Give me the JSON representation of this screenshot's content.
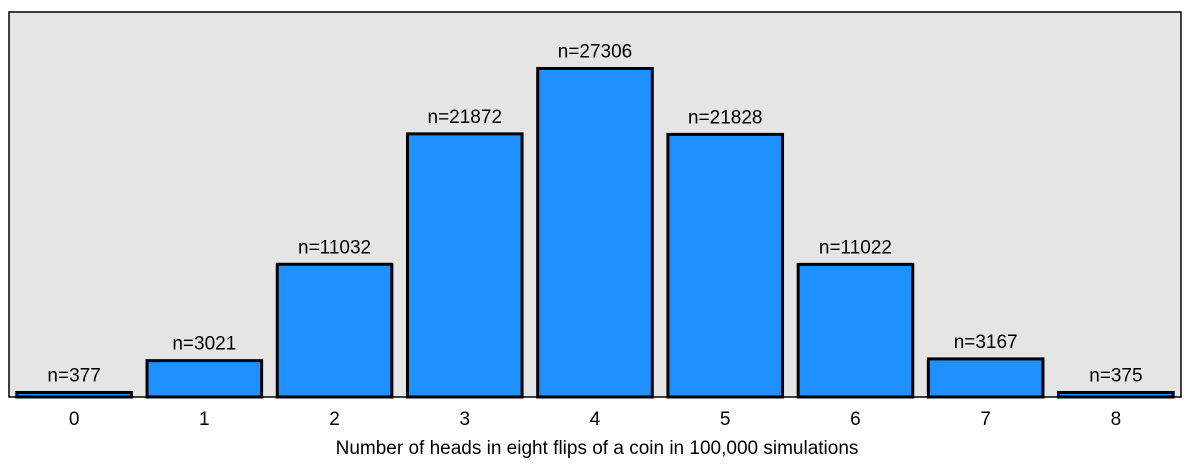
{
  "chart_data": {
    "type": "bar",
    "xlabel": "Number of heads in eight flips of a coin in 100,000 simulations",
    "categories": [
      "0",
      "1",
      "2",
      "3",
      "4",
      "5",
      "6",
      "7",
      "8"
    ],
    "values": [
      377,
      3021,
      11032,
      21872,
      27306,
      21828,
      11022,
      3167,
      375
    ],
    "value_labels": [
      "n=377",
      "n=3021",
      "n=11032",
      "n=21872",
      "n=27306",
      "n=21828",
      "n=11022",
      "n=3167",
      "n=375"
    ],
    "color": "#1e90ff",
    "ylim": [
      0,
      32000
    ]
  }
}
